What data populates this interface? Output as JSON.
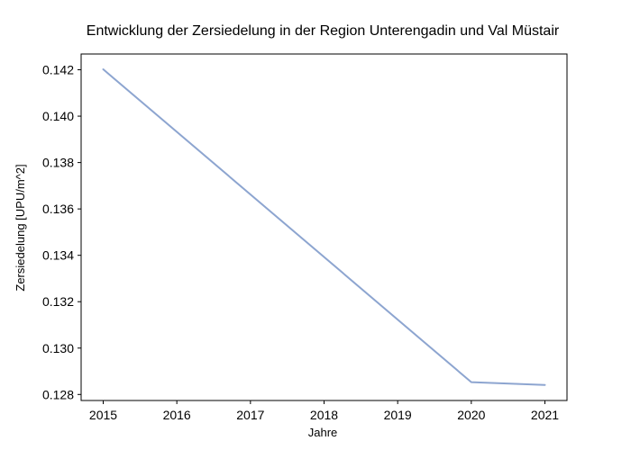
{
  "chart_data": {
    "type": "line",
    "title": "Entwicklung der Zersiedelung in der Region Unterengadin und Val Müstair",
    "xlabel": "Jahre",
    "ylabel": "Zersiedelung [UPU/m^2]",
    "x": [
      2015,
      2020,
      2021
    ],
    "series": [
      {
        "values": [
          0.14202,
          0.12853,
          0.12841
        ],
        "color": "#8da5d0"
      }
    ],
    "xlim": [
      2014.7,
      2021.3
    ],
    "ylim": [
      0.12774,
      0.14268
    ],
    "xticks": [
      "2015",
      "2016",
      "2017",
      "2018",
      "2019",
      "2020",
      "2021"
    ],
    "yticks": [
      "0.128",
      "0.130",
      "0.132",
      "0.134",
      "0.136",
      "0.138",
      "0.140",
      "0.142"
    ],
    "grid": false,
    "legend": "none"
  }
}
